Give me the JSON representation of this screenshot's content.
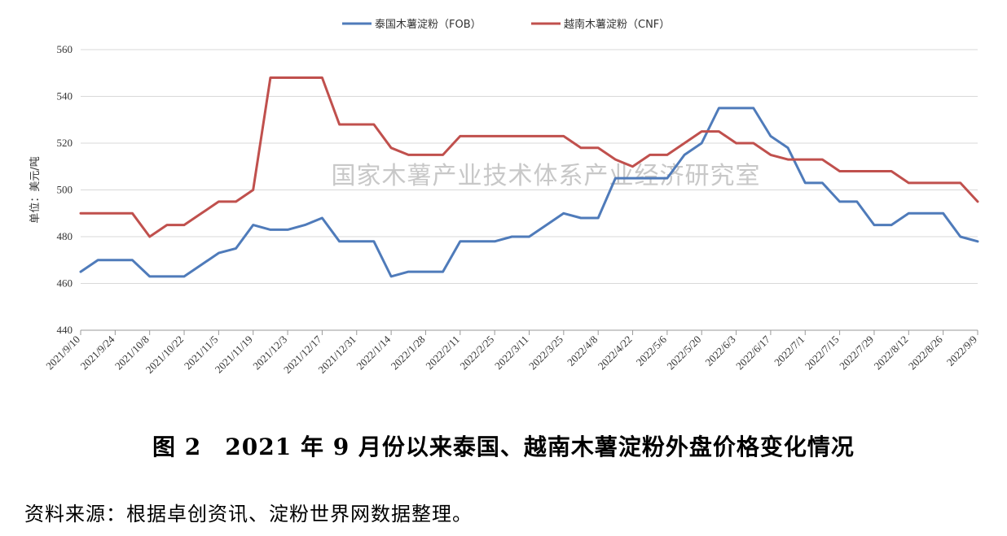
{
  "chart_data": {
    "type": "line",
    "categories": [
      "2021/9/10",
      "2021/9/17",
      "2021/9/24",
      "2021/10/1",
      "2021/10/8",
      "2021/10/15",
      "2021/10/22",
      "2021/10/29",
      "2021/11/5",
      "2021/11/12",
      "2021/11/19",
      "2021/11/26",
      "2021/12/3",
      "2021/12/10",
      "2021/12/17",
      "2021/12/24",
      "2021/12/31",
      "2022/1/7",
      "2022/1/14",
      "2022/1/21",
      "2022/1/28",
      "2022/2/4",
      "2022/2/11",
      "2022/2/18",
      "2022/2/25",
      "2022/3/4",
      "2022/3/11",
      "2022/3/18",
      "2022/3/25",
      "2022/4/1",
      "2022/4/8",
      "2022/4/15",
      "2022/4/22",
      "2022/4/29",
      "2022/5/6",
      "2022/5/13",
      "2022/5/20",
      "2022/5/27",
      "2022/6/3",
      "2022/6/10",
      "2022/6/17",
      "2022/6/24",
      "2022/7/1",
      "2022/7/8",
      "2022/7/15",
      "2022/7/22",
      "2022/7/29",
      "2022/8/5",
      "2022/8/12",
      "2022/8/19",
      "2022/8/26",
      "2022/9/2",
      "2022/9/9"
    ],
    "x_tick_labels": [
      "2021/9/10",
      "2021/9/24",
      "2021/10/8",
      "2021/10/22",
      "2021/11/5",
      "2021/11/19",
      "2021/12/3",
      "2021/12/17",
      "2021/12/31",
      "2022/1/14",
      "2022/1/28",
      "2022/2/11",
      "2022/2/25",
      "2022/3/11",
      "2022/3/25",
      "2022/4/8",
      "2022/4/22",
      "2022/5/6",
      "2022/5/20",
      "2022/6/3",
      "2022/6/17",
      "2022/7/1",
      "2022/7/15",
      "2022/7/29",
      "2022/8/12",
      "2022/8/26",
      "2022/9/9"
    ],
    "series": [
      {
        "name": "泰国木薯淀粉（FOB）",
        "color": "#4f7bba",
        "values": [
          465,
          470,
          470,
          470,
          463,
          463,
          463,
          468,
          473,
          475,
          485,
          483,
          483,
          485,
          488,
          478,
          478,
          478,
          463,
          465,
          465,
          465,
          478,
          478,
          478,
          480,
          480,
          485,
          490,
          488,
          488,
          505,
          505,
          505,
          505,
          515,
          520,
          535,
          535,
          535,
          523,
          518,
          503,
          503,
          495,
          495,
          485,
          485,
          490,
          490,
          490,
          480,
          478
        ]
      },
      {
        "name": "越南木薯淀粉（CNF）",
        "color": "#c0504d",
        "values": [
          490,
          490,
          490,
          490,
          480,
          485,
          485,
          490,
          495,
          495,
          500,
          548,
          548,
          548,
          548,
          528,
          528,
          528,
          518,
          515,
          515,
          515,
          523,
          523,
          523,
          523,
          523,
          523,
          523,
          518,
          518,
          513,
          510,
          515,
          515,
          520,
          525,
          525,
          520,
          520,
          515,
          513,
          513,
          513,
          508,
          508,
          508,
          508,
          503,
          503,
          503,
          503,
          495
        ]
      }
    ],
    "ylabel": "单位：美元/吨",
    "ylim": [
      440,
      560
    ],
    "y_ticks": [
      440,
      460,
      480,
      500,
      520,
      540,
      560
    ],
    "grid": true,
    "legend_position": "top-center"
  },
  "watermark_text": "国家木薯产业技术体系产业经济研究室",
  "caption": "图 2　2021 年 9 月份以来泰国、越南木薯淀粉外盘价格变化情况",
  "source_note": "资料来源：根据卓创资讯、淀粉世界网数据整理。"
}
